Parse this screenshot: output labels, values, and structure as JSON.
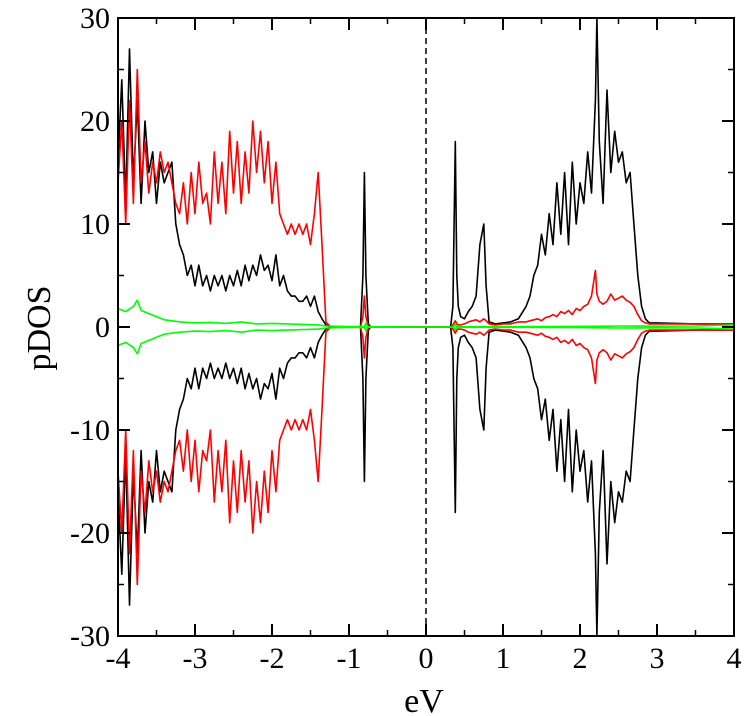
{
  "chart_data": {
    "type": "line",
    "xlabel": "eV",
    "ylabel": "pDOS",
    "xlim": [
      -4,
      4
    ],
    "ylim": [
      -30,
      30
    ],
    "x_ticks": [
      "-4",
      "-3",
      "-2",
      "-1",
      "0",
      "1",
      "2",
      "3",
      "4"
    ],
    "y_ticks": [
      "-30",
      "-20",
      "-10",
      "0",
      "10",
      "20",
      "30"
    ],
    "fermi_level": 0,
    "mirror_negative": true,
    "grid": false,
    "legend": "none",
    "series": [
      {
        "color": "#000000",
        "x": [
          -4.0,
          -3.95,
          -3.9,
          -3.85,
          -3.8,
          -3.75,
          -3.7,
          -3.65,
          -3.6,
          -3.55,
          -3.5,
          -3.45,
          -3.4,
          -3.35,
          -3.3,
          -3.25,
          -3.2,
          -3.15,
          -3.1,
          -3.05,
          -3.0,
          -2.95,
          -2.9,
          -2.85,
          -2.8,
          -2.75,
          -2.7,
          -2.65,
          -2.6,
          -2.55,
          -2.5,
          -2.45,
          -2.4,
          -2.35,
          -2.3,
          -2.25,
          -2.2,
          -2.15,
          -2.1,
          -2.05,
          -2.0,
          -1.95,
          -1.9,
          -1.85,
          -1.8,
          -1.75,
          -1.7,
          -1.65,
          -1.6,
          -1.55,
          -1.5,
          -1.45,
          -1.4,
          -1.35,
          -1.3,
          -1.25,
          -1.2,
          -0.85,
          -0.82,
          -0.8,
          -0.78,
          -0.75,
          -0.72,
          0.32,
          0.35,
          0.38,
          0.4,
          0.42,
          0.45,
          0.5,
          0.55,
          0.6,
          0.65,
          0.7,
          0.75,
          0.78,
          0.82,
          0.9,
          1.0,
          1.1,
          1.2,
          1.3,
          1.35,
          1.4,
          1.45,
          1.5,
          1.55,
          1.6,
          1.65,
          1.7,
          1.75,
          1.8,
          1.85,
          1.9,
          1.95,
          2.0,
          2.05,
          2.1,
          2.15,
          2.2,
          2.22,
          2.25,
          2.3,
          2.35,
          2.4,
          2.45,
          2.5,
          2.55,
          2.6,
          2.65,
          2.7,
          2.75,
          2.8,
          2.85,
          2.9,
          3.0,
          3.5,
          4.0
        ],
        "y": [
          16,
          24,
          12,
          27,
          14,
          22,
          12,
          20,
          15,
          17,
          12,
          16,
          14,
          15,
          16,
          10,
          8,
          7,
          5,
          6,
          4,
          6,
          4,
          5,
          3.5,
          5,
          4,
          5,
          3.5,
          5,
          4,
          5.5,
          4,
          6,
          4.5,
          6,
          5,
          7,
          5.5,
          6,
          4.5,
          7,
          4,
          5,
          3.5,
          3,
          3,
          2.5,
          2.5,
          3,
          2,
          3,
          1.5,
          0.8,
          0.2,
          0.05,
          0,
          0,
          5,
          15,
          5,
          0.3,
          0,
          0,
          2,
          18,
          5,
          2,
          1,
          0.8,
          1.5,
          2,
          3,
          8,
          10,
          4,
          0.5,
          0.3,
          0.4,
          0.5,
          0.8,
          2,
          3,
          5,
          6,
          9,
          7,
          11,
          8,
          14,
          9,
          15,
          8,
          16,
          10,
          14,
          12,
          17,
          13,
          22,
          30,
          18,
          12,
          23,
          15,
          19,
          16,
          17,
          14,
          15,
          10,
          5,
          2,
          0.8,
          0.4,
          0.4,
          0.3,
          0.3
        ]
      },
      {
        "color": "#ff0000",
        "x": [
          -4.0,
          -3.95,
          -3.9,
          -3.85,
          -3.8,
          -3.75,
          -3.7,
          -3.65,
          -3.6,
          -3.55,
          -3.5,
          -3.45,
          -3.4,
          -3.35,
          -3.3,
          -3.25,
          -3.2,
          -3.15,
          -3.1,
          -3.05,
          -3.0,
          -2.95,
          -2.9,
          -2.85,
          -2.8,
          -2.75,
          -2.7,
          -2.65,
          -2.6,
          -2.55,
          -2.5,
          -2.45,
          -2.4,
          -2.35,
          -2.3,
          -2.25,
          -2.2,
          -2.15,
          -2.1,
          -2.05,
          -2.0,
          -1.95,
          -1.9,
          -1.85,
          -1.8,
          -1.75,
          -1.7,
          -1.65,
          -1.6,
          -1.55,
          -1.5,
          -1.45,
          -1.4,
          -1.35,
          -1.3,
          -1.25,
          -1.2,
          -0.85,
          -0.82,
          -0.8,
          -0.78,
          -0.75,
          -0.72,
          0.32,
          0.35,
          0.38,
          0.4,
          0.42,
          0.45,
          0.5,
          0.55,
          0.6,
          0.65,
          0.7,
          0.75,
          0.78,
          0.82,
          0.9,
          1.0,
          1.1,
          1.2,
          1.3,
          1.35,
          1.4,
          1.45,
          1.5,
          1.55,
          1.6,
          1.65,
          1.7,
          1.75,
          1.8,
          1.85,
          1.9,
          1.95,
          2.0,
          2.05,
          2.1,
          2.15,
          2.2,
          2.22,
          2.25,
          2.3,
          2.35,
          2.4,
          2.45,
          2.5,
          2.55,
          2.6,
          2.65,
          2.7,
          2.75,
          2.8,
          2.85,
          2.9,
          3.0,
          3.5,
          4.0
        ],
        "y": [
          14,
          20,
          10,
          22,
          12,
          25,
          14,
          18,
          13,
          16,
          14,
          17,
          15,
          16,
          14,
          12,
          11,
          14,
          10,
          15,
          11,
          16,
          12,
          13,
          10,
          17,
          12,
          16,
          11,
          19,
          13,
          18,
          12,
          17,
          13,
          20,
          15,
          19,
          14,
          18,
          12,
          16,
          11,
          10,
          9,
          10,
          9,
          10,
          9,
          10,
          8,
          11,
          15,
          8,
          0.5,
          0.1,
          0,
          0,
          1,
          3,
          1,
          0.1,
          0,
          0,
          0.2,
          0.6,
          0.3,
          0.2,
          0.2,
          0.3,
          0.5,
          0.6,
          0.7,
          0.5,
          0.8,
          0.6,
          0.3,
          0.2,
          0.3,
          0.3,
          0.5,
          0.5,
          0.6,
          0.7,
          0.8,
          0.6,
          0.9,
          1.0,
          1.2,
          1.0,
          1.5,
          1.3,
          1.6,
          1.2,
          1.8,
          1.6,
          2.0,
          2.2,
          3.0,
          5.5,
          3.2,
          2.5,
          2.2,
          2.5,
          3.2,
          2.6,
          2.8,
          3.0,
          2.6,
          2.4,
          2.0,
          1.2,
          0.6,
          0.4,
          0.3,
          0.3,
          0.3,
          0.3
        ]
      },
      {
        "color": "#00ff00",
        "x": [
          -4.0,
          -3.9,
          -3.8,
          -3.75,
          -3.7,
          -3.6,
          -3.5,
          -3.4,
          -3.3,
          -3.2,
          -3.0,
          -2.8,
          -2.6,
          -2.4,
          -2.2,
          -2.0,
          -1.8,
          -1.6,
          -1.4,
          -1.3,
          -1.0,
          -0.8,
          -0.78,
          -0.76,
          -0.7,
          0.0,
          0.36,
          0.38,
          0.4,
          0.5,
          1.0,
          1.5,
          2.0,
          2.3,
          2.5,
          3.0,
          3.5,
          4.0
        ],
        "y": [
          1.8,
          1.5,
          2.0,
          2.6,
          1.6,
          1.3,
          1.0,
          0.7,
          0.6,
          0.5,
          0.4,
          0.45,
          0.35,
          0.5,
          0.3,
          0.35,
          0.3,
          0.25,
          0.2,
          0.1,
          0.05,
          0.05,
          0.4,
          0.05,
          0.02,
          0.0,
          0.0,
          0.3,
          0.05,
          0.02,
          0.03,
          0.05,
          0.06,
          0.08,
          0.1,
          0.08,
          0.1,
          0.2
        ]
      }
    ]
  }
}
